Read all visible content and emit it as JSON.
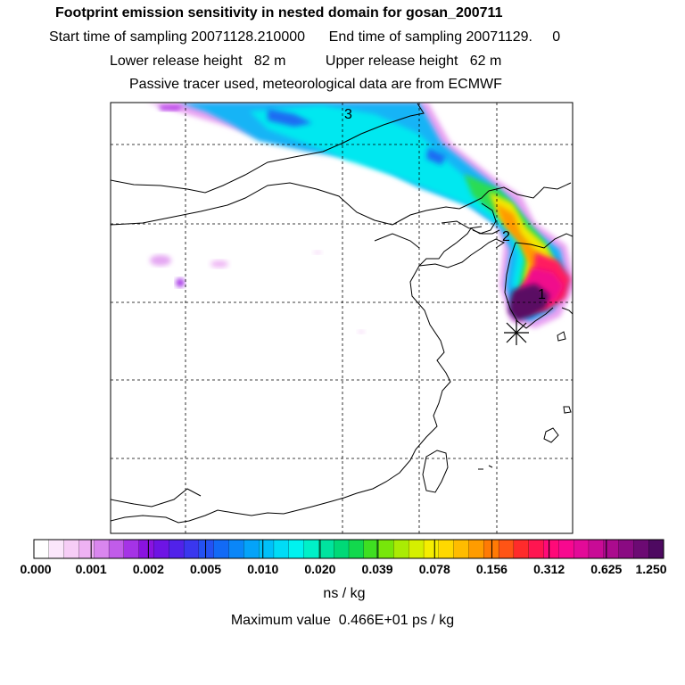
{
  "header": {
    "title": "Footprint emission sensitivity in nested domain for gosan_200711",
    "sampling": "Start time of sampling 20071128.210000      End time of sampling 20071129.     0",
    "release": "Lower release height   82 m          Upper release height   62 m",
    "tracer": "Passive tracer used, meteorological data are from ECMWF"
  },
  "map": {
    "labels": [
      "1",
      "2",
      "3"
    ],
    "receptor_marker": "receptor-star-icon"
  },
  "colorbar": {
    "ticks": [
      "0.000",
      "0.001",
      "0.002",
      "0.005",
      "0.010",
      "0.020",
      "0.039",
      "0.078",
      "0.156",
      "0.312",
      "0.625",
      "1.250"
    ],
    "colors": [
      "#ffffff",
      "#fbe6fb",
      "#f6cdf6",
      "#eeb2f3",
      "#d986ee",
      "#c15ce9",
      "#a533e6",
      "#8a13e0",
      "#6e14e4",
      "#5122e9",
      "#3a37ee",
      "#2451f2",
      "#126af6",
      "#0a86f8",
      "#04a3f9",
      "#00c0f9",
      "#00dcf6",
      "#00f2ef",
      "#00f0c8",
      "#00e49f",
      "#00d977",
      "#12d84d",
      "#3fdf21",
      "#77e60a",
      "#aaeb04",
      "#d5ef00",
      "#f5ed00",
      "#ffd800",
      "#ffbc00",
      "#ff9c00",
      "#ff7a05",
      "#ff5415",
      "#ff2b2b",
      "#ff1550",
      "#ff0a78",
      "#f8088f",
      "#e30a98",
      "#c90b96",
      "#ab0b8e",
      "#8a0a82",
      "#6c0a73",
      "#4e0961"
    ],
    "unit": "ns / kg",
    "max_value": "Maximum value  0.466E+01 ps / kg"
  }
}
